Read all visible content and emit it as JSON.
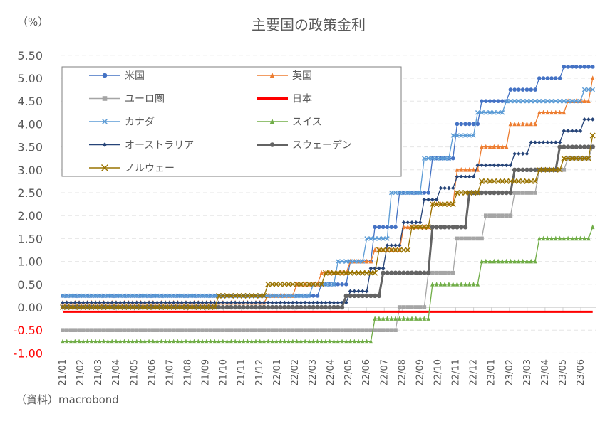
{
  "chart_data": {
    "type": "line",
    "title": "主要国の政策金利",
    "ylabel": "（%）",
    "source": "（資料）macrobond",
    "ylim": [
      -1.0,
      5.5
    ],
    "yticks": [
      "5.50",
      "5.00",
      "4.50",
      "4.00",
      "3.50",
      "3.00",
      "2.50",
      "2.00",
      "1.50",
      "1.00",
      "0.50",
      "0.00",
      "-0.50",
      "-1.00"
    ],
    "ytick_values": [
      5.5,
      5.0,
      4.5,
      4.0,
      3.5,
      3.0,
      2.5,
      2.0,
      1.5,
      1.0,
      0.5,
      0.0,
      -0.5,
      -1.0
    ],
    "negative_tick_color": "#FF0000",
    "xticks": [
      "21/01",
      "21/02",
      "21/03",
      "21/04",
      "21/05",
      "21/06",
      "21/07",
      "21/08",
      "21/09",
      "21/10",
      "21/11",
      "21/12",
      "22/01",
      "22/02",
      "22/03",
      "22/04",
      "22/05",
      "22/06",
      "22/07",
      "22/08",
      "22/09",
      "22/10",
      "22/11",
      "22/12",
      "23/01",
      "23/02",
      "23/03",
      "23/04",
      "23/05",
      "23/06"
    ],
    "x_start": "2021-01-01",
    "x_end": "2023-06-27",
    "grid": "horizontal-dashed",
    "legend_placement": "top-left",
    "series": [
      {
        "name": "米国",
        "color": "#4472C4",
        "marker": "circle",
        "start": 0.25,
        "changes": [
          [
            "2022-03-16",
            0.5
          ],
          [
            "2022-05-04",
            1.0
          ],
          [
            "2022-06-15",
            1.75
          ],
          [
            "2022-07-27",
            2.5
          ],
          [
            "2022-09-21",
            3.25
          ],
          [
            "2022-11-02",
            4.0
          ],
          [
            "2022-12-14",
            4.5
          ],
          [
            "2023-02-01",
            4.75
          ],
          [
            "2023-03-22",
            5.0
          ],
          [
            "2023-05-03",
            5.25
          ]
        ]
      },
      {
        "name": "英国",
        "color": "#ED7D31",
        "marker": "triangle",
        "start": 0.1,
        "changes": [
          [
            "2021-12-16",
            0.25
          ],
          [
            "2022-02-03",
            0.5
          ],
          [
            "2022-03-17",
            0.75
          ],
          [
            "2022-05-05",
            1.0
          ],
          [
            "2022-06-16",
            1.25
          ],
          [
            "2022-08-04",
            1.75
          ],
          [
            "2022-09-22",
            2.25
          ],
          [
            "2022-11-03",
            3.0
          ],
          [
            "2022-12-15",
            3.5
          ],
          [
            "2023-02-02",
            4.0
          ],
          [
            "2023-03-23",
            4.25
          ],
          [
            "2023-05-11",
            4.5
          ],
          [
            "2023-06-22",
            5.0
          ]
        ]
      },
      {
        "name": "ユーロ圏",
        "color": "#A5A5A5",
        "marker": "square",
        "start": -0.5,
        "changes": [
          [
            "2022-07-27",
            0.0
          ],
          [
            "2022-09-14",
            0.75
          ],
          [
            "2022-11-02",
            1.5
          ],
          [
            "2022-12-21",
            2.0
          ],
          [
            "2023-02-08",
            2.5
          ],
          [
            "2023-03-22",
            3.0
          ],
          [
            "2023-05-10",
            3.25
          ],
          [
            "2023-06-21",
            3.5
          ]
        ]
      },
      {
        "name": "日本",
        "color": "#FF0000",
        "marker": "none",
        "start": -0.1,
        "changes": []
      },
      {
        "name": "カナダ",
        "color": "#5B9BD5",
        "marker": "x",
        "start": 0.25,
        "changes": [
          [
            "2022-03-02",
            0.5
          ],
          [
            "2022-04-13",
            1.0
          ],
          [
            "2022-06-01",
            1.5
          ],
          [
            "2022-07-13",
            2.5
          ],
          [
            "2022-09-07",
            3.25
          ],
          [
            "2022-10-26",
            3.75
          ],
          [
            "2022-12-07",
            4.25
          ],
          [
            "2023-01-25",
            4.5
          ],
          [
            "2023-06-07",
            4.75
          ]
        ]
      },
      {
        "name": "スイス",
        "color": "#70AD47",
        "marker": "triangle",
        "start": -0.75,
        "changes": [
          [
            "2022-06-16",
            -0.25
          ],
          [
            "2022-09-22",
            0.5
          ],
          [
            "2022-12-15",
            1.0
          ],
          [
            "2023-03-23",
            1.5
          ],
          [
            "2023-06-22",
            1.75
          ]
        ]
      },
      {
        "name": "オーストラリア",
        "color": "#264478",
        "marker": "diamond",
        "start": 0.1,
        "changes": [
          [
            "2022-05-03",
            0.35
          ],
          [
            "2022-06-07",
            0.85
          ],
          [
            "2022-07-05",
            1.35
          ],
          [
            "2022-08-02",
            1.85
          ],
          [
            "2022-09-06",
            2.35
          ],
          [
            "2022-10-04",
            2.6
          ],
          [
            "2022-11-01",
            2.85
          ],
          [
            "2022-12-06",
            3.1
          ],
          [
            "2023-02-07",
            3.35
          ],
          [
            "2023-03-07",
            3.6
          ],
          [
            "2023-05-02",
            3.85
          ],
          [
            "2023-06-06",
            4.1
          ]
        ]
      },
      {
        "name": "スウェーデン",
        "color": "#636363",
        "marker": "circle",
        "start": 0.0,
        "changes": [
          [
            "2022-04-28",
            0.25
          ],
          [
            "2022-06-30",
            0.75
          ],
          [
            "2022-09-20",
            1.75
          ],
          [
            "2022-11-24",
            2.5
          ],
          [
            "2023-02-09",
            3.0
          ],
          [
            "2023-04-26",
            3.5
          ]
        ]
      },
      {
        "name": "ノルウェー",
        "color": "#997300",
        "marker": "x",
        "start": 0.0,
        "changes": [
          [
            "2021-09-23",
            0.25
          ],
          [
            "2021-12-16",
            0.5
          ],
          [
            "2022-03-24",
            0.75
          ],
          [
            "2022-06-23",
            1.25
          ],
          [
            "2022-08-18",
            1.75
          ],
          [
            "2022-09-22",
            2.25
          ],
          [
            "2022-11-03",
            2.5
          ],
          [
            "2022-12-15",
            2.75
          ],
          [
            "2023-03-23",
            3.0
          ],
          [
            "2023-05-04",
            3.25
          ],
          [
            "2023-06-22",
            3.75
          ]
        ]
      }
    ]
  }
}
